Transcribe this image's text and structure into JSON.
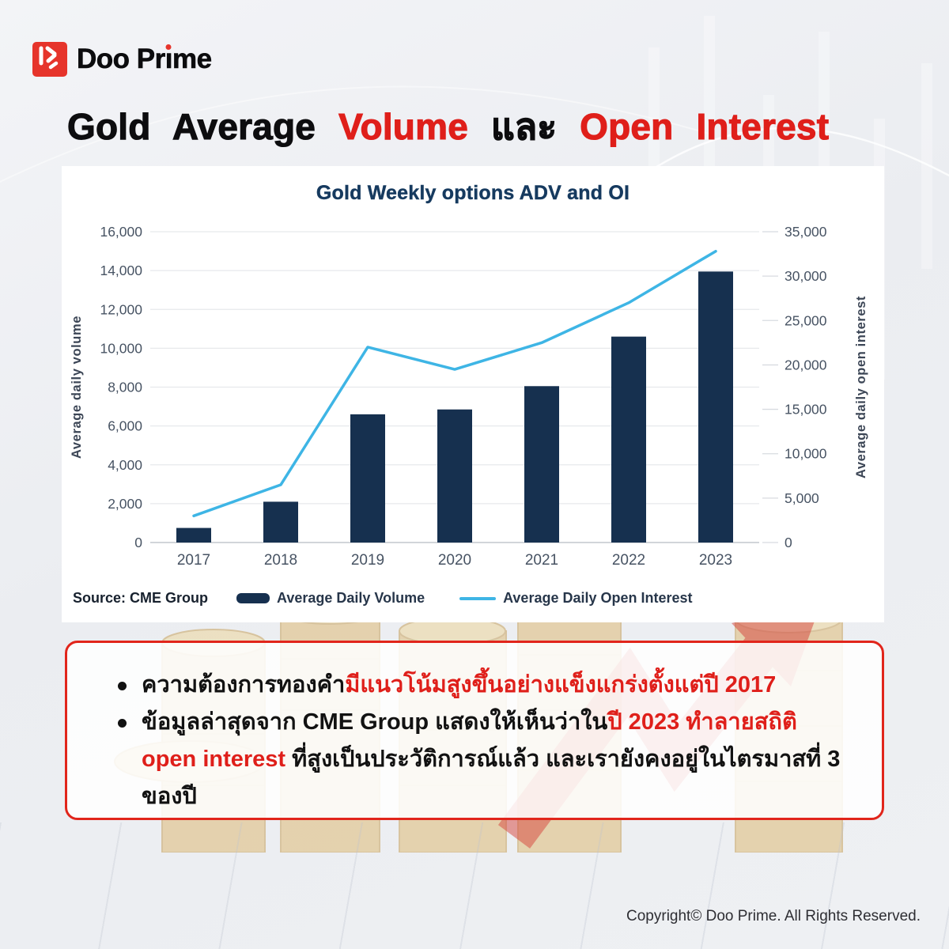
{
  "brand": {
    "wordmark_pre": "Doo Pr",
    "wordmark_i": "ı",
    "wordmark_post": "me"
  },
  "page_title": {
    "part1": "Gold Average ",
    "part2": "Volume",
    "part3": " และ ",
    "part4": "Open Interest"
  },
  "colors": {
    "brand_red": "#e6342b",
    "accent_red": "#df1f1a",
    "bar_navy": "#16304f",
    "line_blue": "#3eb5e5",
    "grid_gray": "#e7e9ec"
  },
  "chart_card": {
    "title": "Gold Weekly options ADV and OI",
    "source": "Source: CME Group",
    "legend": [
      {
        "label": "Average Daily Volume",
        "type": "bar"
      },
      {
        "label": "Average Daily Open Interest",
        "type": "line"
      }
    ]
  },
  "chart_data": {
    "type": "bar",
    "subtype": "bar+line dual axis",
    "title": "Gold Weekly options ADV and OI",
    "categories": [
      "2017",
      "2018",
      "2019",
      "2020",
      "2021",
      "2022",
      "2023"
    ],
    "series": [
      {
        "name": "Average Daily Volume",
        "type": "bar",
        "axis": "left",
        "color": "#16304f",
        "values": [
          750,
          2100,
          6600,
          6850,
          8050,
          10600,
          13950
        ]
      },
      {
        "name": "Average Daily Open Interest",
        "type": "line",
        "axis": "right",
        "color": "#3eb5e5",
        "values": [
          3000,
          6500,
          22000,
          19500,
          22500,
          27000,
          32800
        ]
      }
    ],
    "left_axis": {
      "label": "Average daily volume",
      "min": 0,
      "max": 16000,
      "ticks": [
        0,
        2000,
        4000,
        6000,
        8000,
        10000,
        12000,
        14000,
        16000
      ]
    },
    "right_axis": {
      "label": "Average daily open interest",
      "min": 0,
      "max": 35000,
      "ticks": [
        0,
        5000,
        10000,
        15000,
        20000,
        25000,
        30000,
        35000
      ]
    },
    "grid": "horizontal",
    "legend_position": "bottom"
  },
  "insights": {
    "bullets": [
      {
        "segments": [
          {
            "text": "ความต้องการทองคำ",
            "style": "black"
          },
          {
            "text": "มีแนวโน้มสูงขึ้นอย่างแข็งแกร่งตั้งแต่ปี 2017",
            "style": "red"
          }
        ]
      },
      {
        "segments": [
          {
            "text": "ข้อมูลล่าสุดจาก CME Group แสดงให้เห็นว่าใน",
            "style": "black"
          },
          {
            "text": "ปี 2023 ทำลายสถิติ open interest",
            "style": "red"
          },
          {
            "text": " ที่สูงเป็นประวัติการณ์แล้ว และเรายังคงอยู่ในไตรมาสที่ 3 ของปี",
            "style": "black"
          }
        ]
      }
    ]
  },
  "footer": {
    "copyright": "Copyright© Doo Prime. All Rights Reserved."
  }
}
